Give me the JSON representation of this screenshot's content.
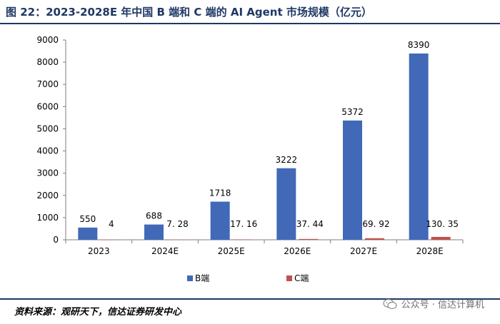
{
  "title": "图 22：2023-2028E 年中国 B 端和 C 端的 AI Agent 市场规模（亿元）",
  "source": "资料来源：观研天下，信达证券研发中心",
  "watermark": "公众号 · 信达计算机",
  "colors": {
    "title": "#1f3864",
    "b_series": "#4169b8",
    "c_series": "#c0504d"
  },
  "chart_data": {
    "type": "bar",
    "categories": [
      "2023",
      "2024E",
      "2025E",
      "2026E",
      "2027E",
      "2028E"
    ],
    "series": [
      {
        "name": "B端",
        "values": [
          550,
          688,
          1718,
          3222,
          5372,
          8390
        ],
        "labels": [
          "550",
          "688",
          "1718",
          "3222",
          "5372",
          "8390"
        ]
      },
      {
        "name": "C端",
        "values": [
          4,
          7.28,
          17.16,
          37.44,
          69.92,
          130.35
        ],
        "labels": [
          "4",
          "7. 28",
          "17. 16",
          "37. 44",
          "69. 92",
          "130. 35"
        ]
      }
    ],
    "ylim": [
      0,
      9000
    ],
    "yticks": [
      0,
      1000,
      2000,
      3000,
      4000,
      5000,
      6000,
      7000,
      8000,
      9000
    ],
    "legend_position": "bottom",
    "grid": false
  }
}
